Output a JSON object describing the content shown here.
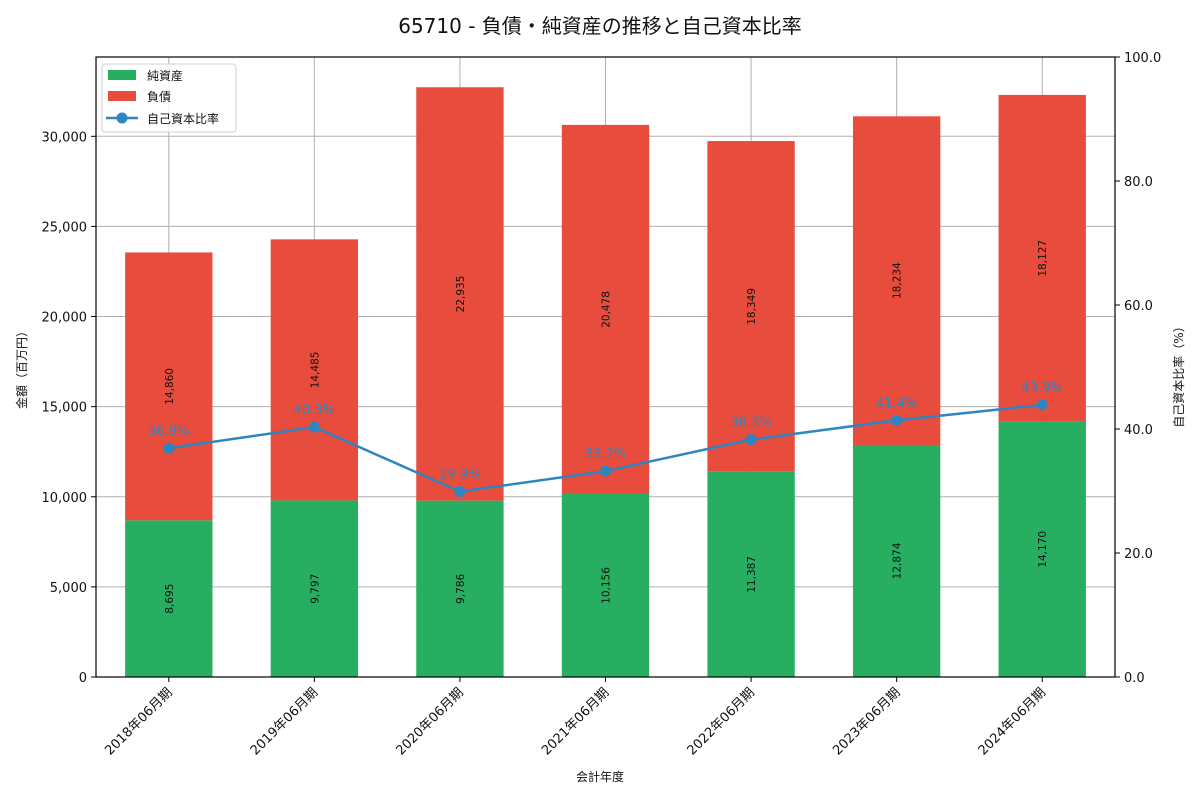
{
  "chart_data": {
    "type": "bar",
    "subtype": "stacked-bar-with-line-secondary-axis",
    "title": "65710 - 負債・純資産の推移と自己資本比率",
    "xlabel": "会計年度",
    "ylabel": "金額（百万円）",
    "ylabel_right": "自己資本比率（%）",
    "categories": [
      "2018年06月期",
      "2019年06月期",
      "2020年06月期",
      "2021年06月期",
      "2022年06月期",
      "2023年06月期",
      "2024年06月期"
    ],
    "series": [
      {
        "name": "純資産",
        "type": "bar",
        "axis": "left",
        "color": "#27ae60",
        "values": [
          8695,
          9797,
          9786,
          10156,
          11387,
          12874,
          14170
        ],
        "labels": [
          "8,695",
          "9,797",
          "9,786",
          "10,156",
          "11,387",
          "12,874",
          "14,170"
        ]
      },
      {
        "name": "負債",
        "type": "bar",
        "axis": "left",
        "color": "#e74c3c",
        "values": [
          14860,
          14485,
          22935,
          20478,
          18349,
          18234,
          18127
        ],
        "labels": [
          "14,860",
          "14,485",
          "22,935",
          "20,478",
          "18,349",
          "18,234",
          "18,127"
        ]
      },
      {
        "name": "自己資本比率",
        "type": "line",
        "axis": "right",
        "color": "#2e86c1",
        "values": [
          36.9,
          40.3,
          29.9,
          33.2,
          38.3,
          41.4,
          43.9
        ],
        "labels": [
          "36.9%",
          "40.3%",
          "29.9%",
          "33.2%",
          "38.3%",
          "41.4%",
          "43.9%"
        ]
      }
    ],
    "ylim": [
      0,
      34400
    ],
    "ylim_right": [
      0,
      100
    ],
    "yticks": [
      0,
      5000,
      10000,
      15000,
      20000,
      25000,
      30000
    ],
    "ytick_labels": [
      "0",
      "5,000",
      "10,000",
      "15,000",
      "20,000",
      "25,000",
      "30,000"
    ],
    "yticks_right": [
      0,
      20,
      40,
      60,
      80,
      100
    ],
    "ytick_labels_right": [
      "0.0",
      "20.0",
      "40.0",
      "60.0",
      "80.0",
      "100.0"
    ],
    "grid": true,
    "legend_position": "upper left",
    "legend": [
      "純資産",
      "負債",
      "自己資本比率"
    ]
  }
}
